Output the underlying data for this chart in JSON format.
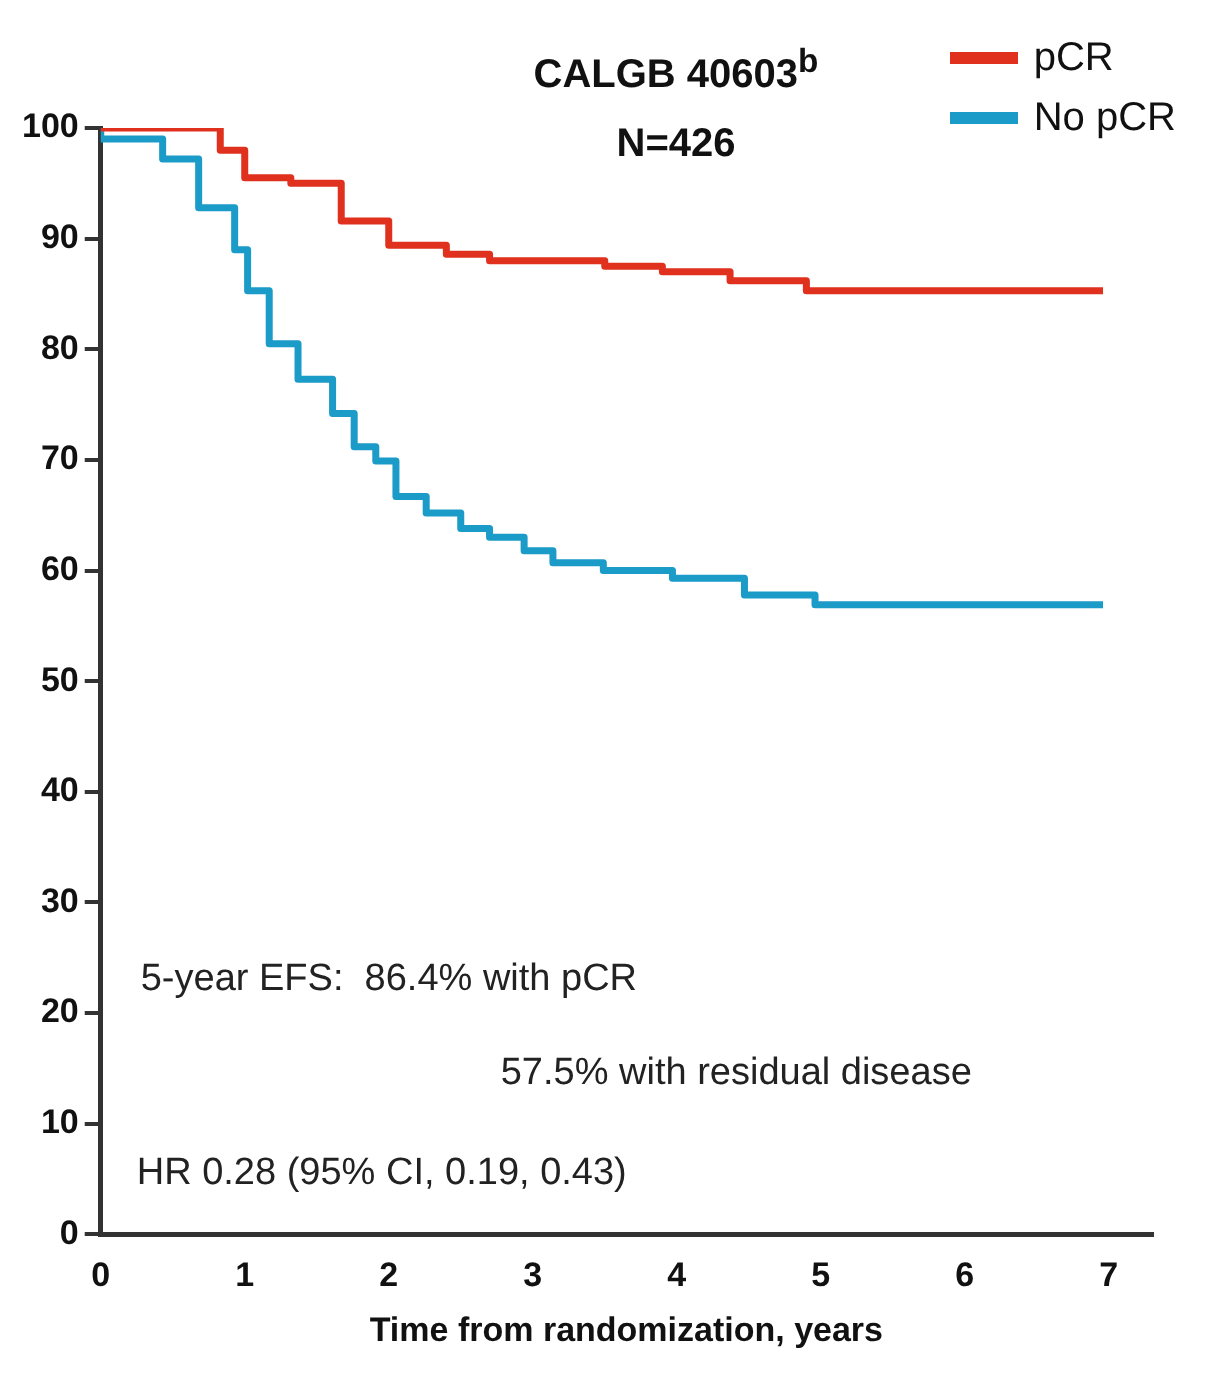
{
  "chart_data": {
    "type": "step",
    "title": "CALGB 40603$^{b}$",
    "subtitle": "N=426",
    "xlabel": "Time from randomization, years",
    "series": [
      {
        "name": "pCR",
        "color": "#e0301e",
        "x": [
          0,
          0.83,
          1.0,
          1.32,
          1.67,
          2.0,
          2.4,
          2.7,
          3.0,
          3.5,
          3.9,
          4.37,
          4.9,
          5.2,
          6.96
        ],
        "values": [
          100,
          100,
          98,
          95.5,
          95,
          91.6,
          89.4,
          88.6,
          88,
          88,
          87.5,
          87,
          86.2,
          85.3,
          85.3
        ]
      },
      {
        "name": "No pCR",
        "color": "#1a9bc8",
        "x": [
          0,
          0.05,
          0.43,
          0.68,
          0.93,
          1.02,
          1.17,
          1.37,
          1.61,
          1.76,
          1.91,
          2.05,
          2.26,
          2.5,
          2.7,
          2.94,
          3.14,
          3.49,
          3.97,
          4.47,
          4.96,
          5.65,
          6.96
        ],
        "values": [
          100,
          99,
          99,
          97.2,
          92.8,
          89,
          85.3,
          80.5,
          77.3,
          74.2,
          71.2,
          69.9,
          66.7,
          65.2,
          63.8,
          63,
          61.8,
          60.7,
          60,
          59.3,
          57.8,
          56.9,
          56.9
        ]
      }
    ],
    "xlim": [
      0,
      7.3
    ],
    "xticks": [
      0,
      1,
      2,
      3,
      4,
      5,
      6,
      7
    ],
    "ylim": [
      0,
      100
    ],
    "yticks": [
      0,
      10,
      20,
      30,
      40,
      50,
      60,
      70,
      80,
      90,
      100
    ],
    "grid": false,
    "legend": "top right",
    "annotations": [
      "5-year EFS:  86.4% with pCR",
      "57.5% with residual disease",
      "HR 0.28 (95% CI, 0.19, 0.43)"
    ]
  }
}
